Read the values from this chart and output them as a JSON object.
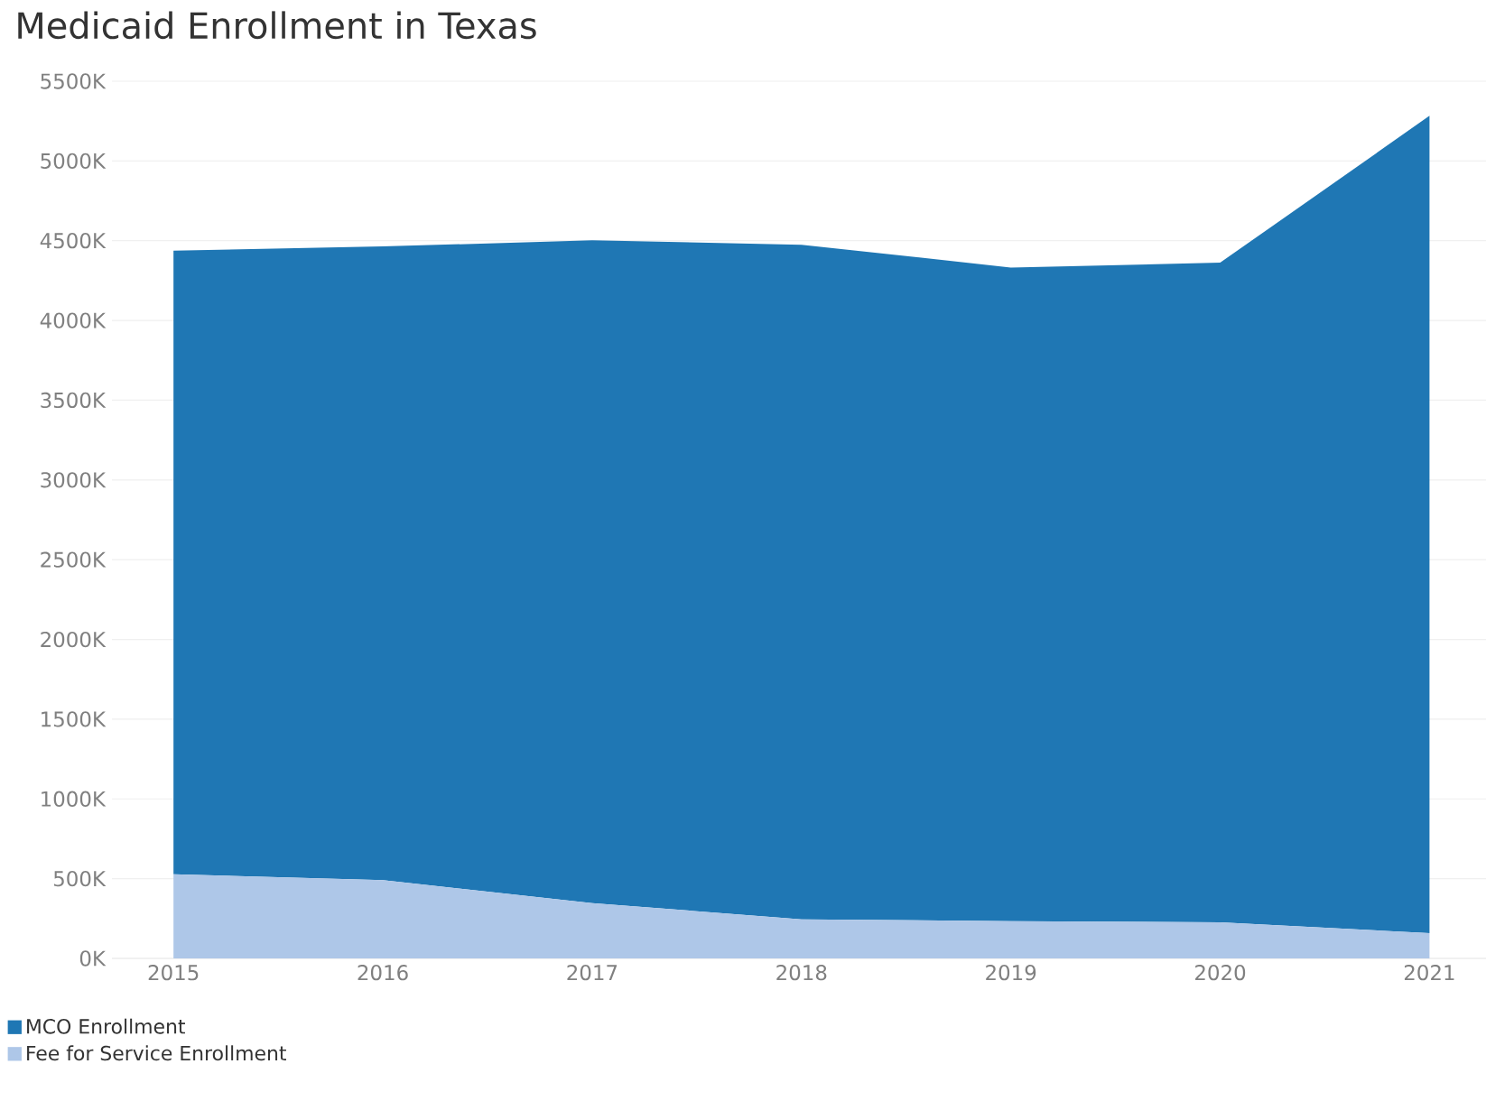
{
  "chart_data": {
    "type": "area",
    "title": "Medicaid Enrollment in Texas",
    "categories": [
      "2015",
      "2016",
      "2017",
      "2018",
      "2019",
      "2020",
      "2021"
    ],
    "stacked": true,
    "series": [
      {
        "name": "Fee for Service Enrollment",
        "color": "#aec7e8",
        "values": [
          528000,
          491000,
          347000,
          245000,
          234000,
          226000,
          158000
        ]
      },
      {
        "name": "MCO Enrollment",
        "color": "#1f77b4",
        "values": [
          3910000,
          3973000,
          4155000,
          4230000,
          4098000,
          4136000,
          5125000
        ]
      }
    ],
    "ylim": [
      0,
      5500000
    ],
    "yticks": [
      {
        "value": 0,
        "label": "0K"
      },
      {
        "value": 500000,
        "label": "500K"
      },
      {
        "value": 1000000,
        "label": "1000K"
      },
      {
        "value": 1500000,
        "label": "1500K"
      },
      {
        "value": 2000000,
        "label": "2000K"
      },
      {
        "value": 2500000,
        "label": "2500K"
      },
      {
        "value": 3000000,
        "label": "3000K"
      },
      {
        "value": 3500000,
        "label": "3500K"
      },
      {
        "value": 4000000,
        "label": "4000K"
      },
      {
        "value": 4500000,
        "label": "4500K"
      },
      {
        "value": 5000000,
        "label": "5000K"
      },
      {
        "value": 5500000,
        "label": "5500K"
      }
    ],
    "grid": "y",
    "legend": "bottom left"
  }
}
